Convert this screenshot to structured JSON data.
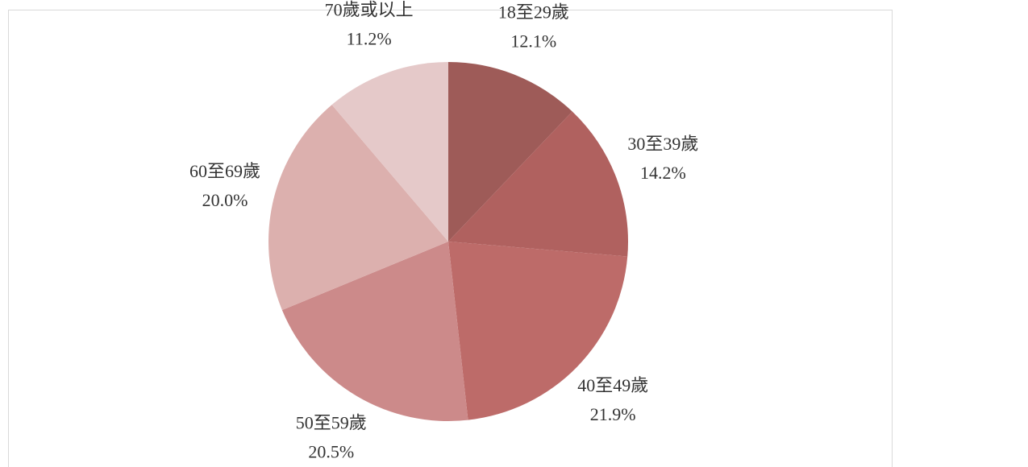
{
  "chart_data": {
    "type": "pie",
    "categories": [
      "18至29歲",
      "30至39歲",
      "40至49歲",
      "50至59歲",
      "60至69歲",
      "70歲或以上"
    ],
    "values": [
      12.1,
      14.2,
      21.9,
      20.5,
      20.0,
      11.2
    ],
    "value_labels": [
      "12.1%",
      "14.2%",
      "21.9%",
      "20.5%",
      "20.0%",
      "11.2%"
    ],
    "colors": [
      "#9e5b58",
      "#b0615f",
      "#bd6b69",
      "#cc8a8a",
      "#dcb0ae",
      "#e5c9c9"
    ]
  }
}
